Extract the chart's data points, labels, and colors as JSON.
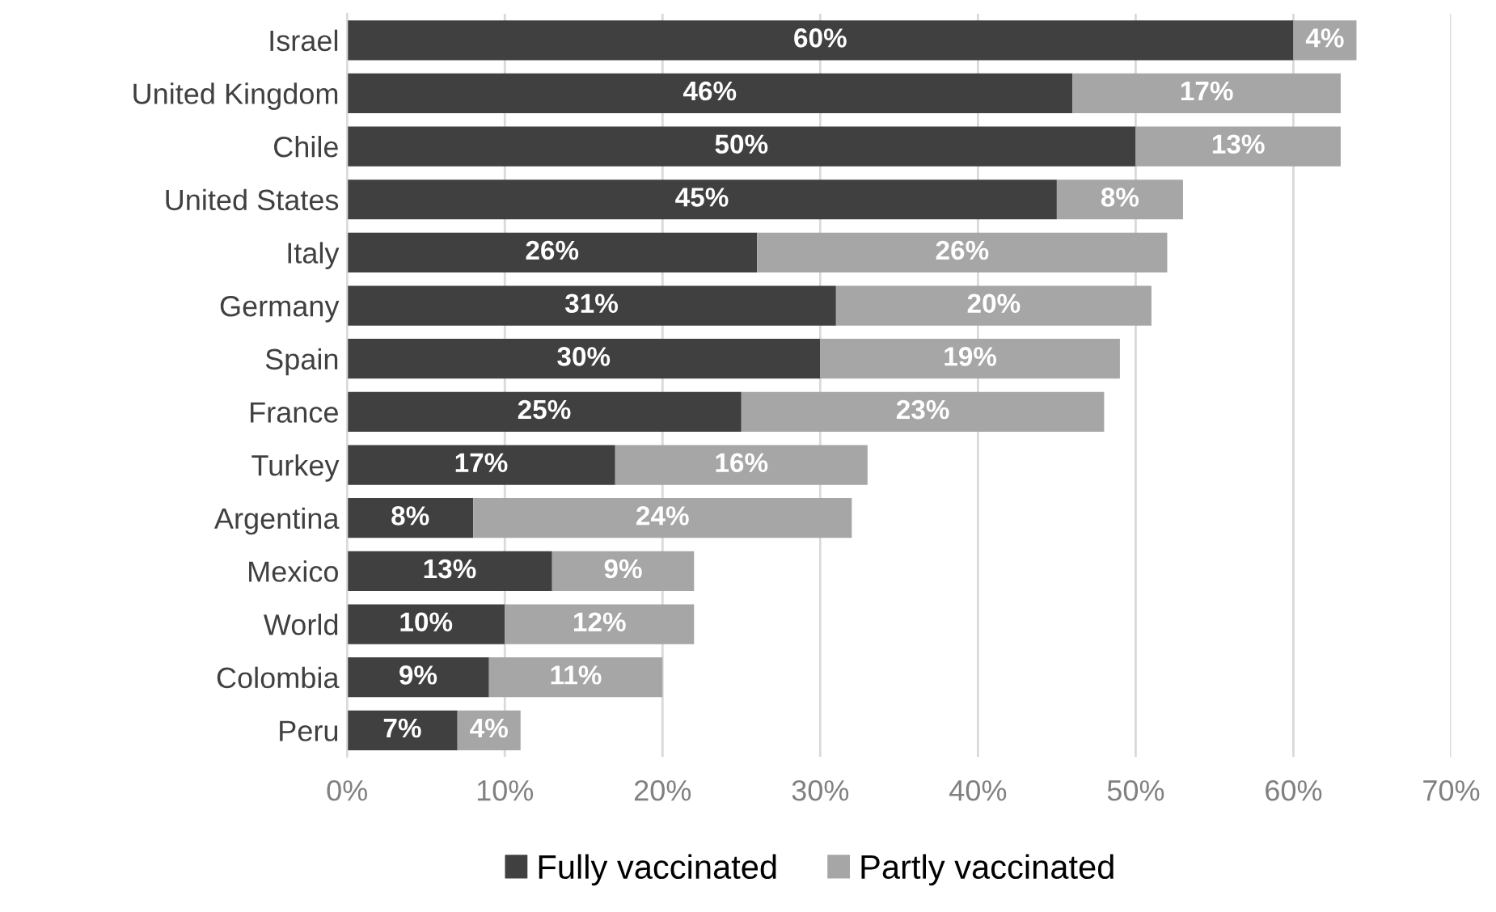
{
  "chart_data": {
    "type": "bar",
    "orientation": "horizontal",
    "stacked": true,
    "categories": [
      "Israel",
      "United Kingdom",
      "Chile",
      "United States",
      "Italy",
      "Germany",
      "Spain",
      "France",
      "Turkey",
      "Argentina",
      "Mexico",
      "World",
      "Colombia",
      "Peru"
    ],
    "series": [
      {
        "name": "Fully vaccinated",
        "color": "#404040",
        "values": [
          60,
          46,
          50,
          45,
          26,
          31,
          30,
          25,
          17,
          8,
          13,
          10,
          9,
          7
        ],
        "value_labels": [
          "60%",
          "46%",
          "50%",
          "45%",
          "26%",
          "31%",
          "30%",
          "25%",
          "17%",
          "8%",
          "13%",
          "10%",
          "9%",
          "7%"
        ]
      },
      {
        "name": "Partly vaccinated",
        "color": "#a6a6a6",
        "values": [
          4,
          17,
          13,
          8,
          26,
          20,
          19,
          23,
          16,
          24,
          9,
          12,
          11,
          4
        ],
        "value_labels": [
          "4%",
          "17%",
          "13%",
          "8%",
          "26%",
          "20%",
          "19%",
          "23%",
          "16%",
          "24%",
          "9%",
          "12%",
          "11%",
          "4%"
        ]
      }
    ],
    "xlim": [
      0,
      70
    ],
    "xticks": [
      {
        "value": 0,
        "label": "0%"
      },
      {
        "value": 10,
        "label": "10%"
      },
      {
        "value": 20,
        "label": "20%"
      },
      {
        "value": 30,
        "label": "30%"
      },
      {
        "value": 40,
        "label": "40%"
      },
      {
        "value": 50,
        "label": "50%"
      },
      {
        "value": 60,
        "label": "60%"
      },
      {
        "value": 70,
        "label": "70%"
      }
    ],
    "grid": "x",
    "legend": "bottom"
  }
}
